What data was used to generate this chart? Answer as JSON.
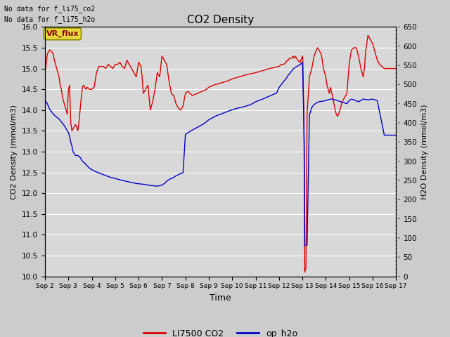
{
  "title": "CO2 Density",
  "xlabel": "Time",
  "ylabel_left": "CO2 Density (mmol/m3)",
  "ylabel_right": "H2O Density (mmol/m3)",
  "text_upper_left_1": "No data for f_li75_co2",
  "text_upper_left_2": "No data for f_li75_h2o",
  "vr_flux_label": "VR_flux",
  "ylim_left": [
    10.0,
    16.0
  ],
  "ylim_right": [
    0,
    650
  ],
  "yticks_left": [
    10.0,
    10.5,
    11.0,
    11.5,
    12.0,
    12.5,
    13.0,
    13.5,
    14.0,
    14.5,
    15.0,
    15.5,
    16.0
  ],
  "yticks_right": [
    0,
    50,
    100,
    150,
    200,
    250,
    300,
    350,
    400,
    450,
    500,
    550,
    600,
    650
  ],
  "bg_color": "#cccccc",
  "plot_bg_color": "#d8d8d8",
  "grid_color": "#ffffff",
  "legend_entries": [
    "LI7500 CO2",
    "op_h2o"
  ],
  "legend_colors": [
    "#dd0000",
    "#0000cc"
  ],
  "co2_color": "#dd0000",
  "h2o_color": "#0000cc",
  "co2_x": [
    2.0,
    2.05,
    2.1,
    2.2,
    2.3,
    2.35,
    2.4,
    2.5,
    2.6,
    2.65,
    2.7,
    2.75,
    2.8,
    2.85,
    2.9,
    2.95,
    3.0,
    3.05,
    3.1,
    3.15,
    3.2,
    3.25,
    3.3,
    3.35,
    3.4,
    3.45,
    3.5,
    3.55,
    3.6,
    3.65,
    3.7,
    3.75,
    3.8,
    3.9,
    4.0,
    4.1,
    4.2,
    4.3,
    4.5,
    4.6,
    4.7,
    4.8,
    4.9,
    5.0,
    5.1,
    5.2,
    5.3,
    5.4,
    5.5,
    5.6,
    5.7,
    5.8,
    5.9,
    6.0,
    6.1,
    6.15,
    6.2,
    6.3,
    6.4,
    6.5,
    6.6,
    6.7,
    6.8,
    6.9,
    7.0,
    7.05,
    7.1,
    7.15,
    7.2,
    7.3,
    7.4,
    7.5,
    7.6,
    7.7,
    7.8,
    7.9,
    8.0,
    8.1,
    8.2,
    8.3,
    8.5,
    8.7,
    8.9,
    9.0,
    9.2,
    9.5,
    9.8,
    10.0,
    10.3,
    10.6,
    11.0,
    11.3,
    11.6,
    12.0,
    12.1,
    12.2,
    12.3,
    12.35,
    12.4,
    12.45,
    12.5,
    12.55,
    12.6,
    12.65,
    12.7,
    12.8,
    12.9,
    13.0,
    13.02,
    13.04,
    13.06,
    13.08,
    13.1,
    13.15,
    13.2,
    13.3,
    13.4,
    13.5,
    13.6,
    13.65,
    13.7,
    13.75,
    13.8,
    13.85,
    13.9,
    14.0,
    14.05,
    14.1,
    14.15,
    14.2,
    14.3,
    14.4,
    14.45,
    14.5,
    14.55,
    14.6,
    14.7,
    14.8,
    14.9,
    15.0,
    15.05,
    15.1,
    15.2,
    15.3,
    15.4,
    15.5,
    15.6,
    15.65,
    15.7,
    15.8,
    15.9,
    16.0,
    16.1,
    16.2,
    16.3,
    16.5,
    16.7,
    17.0
  ],
  "co2_y": [
    14.9,
    15.1,
    15.35,
    15.45,
    15.4,
    15.35,
    15.2,
    15.0,
    14.8,
    14.6,
    14.5,
    14.3,
    14.2,
    14.1,
    14.0,
    13.9,
    14.5,
    14.6,
    13.7,
    13.5,
    13.55,
    13.6,
    13.65,
    13.6,
    13.5,
    13.7,
    14.0,
    14.3,
    14.55,
    14.6,
    14.55,
    14.5,
    14.55,
    14.5,
    14.5,
    14.55,
    14.9,
    15.05,
    15.05,
    15.0,
    15.1,
    15.05,
    15.0,
    15.1,
    15.1,
    15.15,
    15.05,
    15.0,
    15.2,
    15.1,
    15.0,
    14.9,
    14.8,
    15.15,
    15.05,
    14.8,
    14.4,
    14.5,
    14.6,
    14.0,
    14.2,
    14.5,
    14.9,
    14.8,
    15.3,
    15.25,
    15.2,
    15.15,
    15.1,
    14.7,
    14.4,
    14.35,
    14.15,
    14.05,
    14.0,
    14.1,
    14.4,
    14.45,
    14.4,
    14.35,
    14.4,
    14.45,
    14.5,
    14.55,
    14.6,
    14.65,
    14.7,
    14.75,
    14.8,
    14.85,
    14.9,
    14.95,
    15.0,
    15.05,
    15.1,
    15.1,
    15.15,
    15.2,
    15.2,
    15.25,
    15.25,
    15.25,
    15.3,
    15.25,
    15.3,
    15.2,
    15.15,
    15.3,
    15.2,
    14.5,
    13.9,
    12.5,
    10.1,
    10.2,
    13.9,
    14.8,
    15.0,
    15.3,
    15.45,
    15.5,
    15.45,
    15.4,
    15.35,
    15.2,
    15.0,
    14.8,
    14.6,
    14.5,
    14.4,
    14.55,
    14.3,
    14.0,
    13.9,
    13.85,
    13.9,
    14.0,
    14.2,
    14.3,
    14.4,
    15.1,
    15.3,
    15.45,
    15.5,
    15.5,
    15.3,
    15.0,
    14.8,
    15.0,
    15.4,
    15.8,
    15.7,
    15.6,
    15.4,
    15.2,
    15.1,
    15.0,
    15.0,
    15.0
  ],
  "h2o_x": [
    2.0,
    2.1,
    2.2,
    2.4,
    2.6,
    2.8,
    2.9,
    3.0,
    3.05,
    3.1,
    3.15,
    3.2,
    3.3,
    3.4,
    3.5,
    3.6,
    3.7,
    3.8,
    3.9,
    4.0,
    4.2,
    4.5,
    4.8,
    5.0,
    5.3,
    5.6,
    5.9,
    6.2,
    6.5,
    6.8,
    7.0,
    7.05,
    7.1,
    7.15,
    7.2,
    7.25,
    7.3,
    7.35,
    7.4,
    7.45,
    7.5,
    7.55,
    7.6,
    7.7,
    7.8,
    7.9,
    8.0,
    8.2,
    8.5,
    8.8,
    9.0,
    9.3,
    9.6,
    9.9,
    10.2,
    10.5,
    10.8,
    11.0,
    11.3,
    11.6,
    11.9,
    12.0,
    12.1,
    12.2,
    12.3,
    12.35,
    12.4,
    12.45,
    12.5,
    12.6,
    12.7,
    12.8,
    12.9,
    13.0,
    13.02,
    13.04,
    13.06,
    13.08,
    13.1,
    13.2,
    13.3,
    13.4,
    13.5,
    13.6,
    13.7,
    13.8,
    13.9,
    14.0,
    14.1,
    14.2,
    14.3,
    14.4,
    14.5,
    14.6,
    14.7,
    14.8,
    14.9,
    15.0,
    15.1,
    15.2,
    15.4,
    15.6,
    15.8,
    16.0,
    16.2,
    16.5,
    17.0
  ],
  "h2o_y": [
    460,
    450,
    435,
    420,
    410,
    395,
    385,
    375,
    365,
    350,
    340,
    325,
    315,
    315,
    310,
    300,
    295,
    288,
    282,
    278,
    272,
    265,
    258,
    255,
    250,
    246,
    242,
    240,
    237,
    235,
    238,
    240,
    242,
    245,
    248,
    250,
    252,
    254,
    255,
    256,
    258,
    260,
    262,
    265,
    268,
    270,
    370,
    378,
    388,
    398,
    408,
    418,
    425,
    432,
    438,
    442,
    448,
    455,
    462,
    470,
    478,
    492,
    500,
    508,
    515,
    520,
    525,
    528,
    532,
    540,
    545,
    548,
    552,
    558,
    520,
    460,
    400,
    340,
    80,
    82,
    420,
    440,
    448,
    452,
    455,
    456,
    457,
    458,
    460,
    462,
    462,
    460,
    458,
    456,
    454,
    452,
    450,
    458,
    462,
    460,
    455,
    462,
    460,
    462,
    458,
    368,
    368
  ]
}
